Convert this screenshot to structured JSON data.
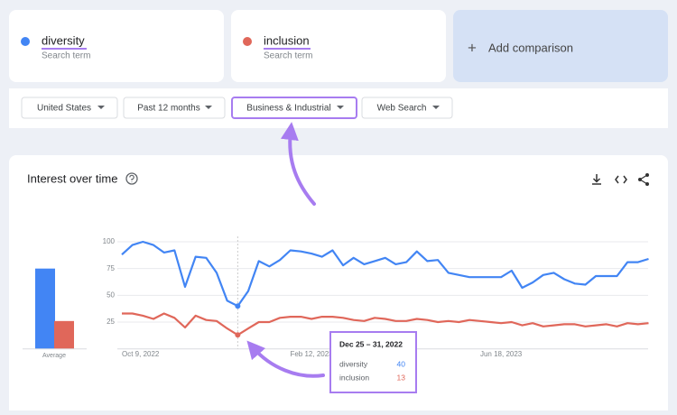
{
  "search_terms": [
    {
      "name": "diversity",
      "subtitle": "Search term"
    },
    {
      "name": "inclusion",
      "subtitle": "Search term"
    }
  ],
  "add_comparison": {
    "icon": "+",
    "label": "Add comparison"
  },
  "filters": [
    "United States",
    "Past 12 months",
    "Business & Industrial",
    "Web Search"
  ],
  "chart_data": {
    "type": "line",
    "title": "Interest over time",
    "categories": [
      "Oct 9, 2022",
      null,
      null,
      null,
      null,
      null,
      null,
      null,
      null,
      null,
      null,
      null,
      null,
      null,
      null,
      null,
      null,
      null,
      "Feb 12, 2023",
      null,
      null,
      null,
      null,
      null,
      null,
      null,
      null,
      null,
      null,
      null,
      null,
      null,
      null,
      null,
      null,
      null,
      "Jun 18, 2023",
      null,
      null,
      null,
      null,
      null,
      null,
      null,
      null,
      null,
      null,
      null,
      null,
      null,
      null
    ],
    "series": [
      {
        "name": "diversity",
        "color": "#4285f4",
        "values": [
          88,
          97,
          100,
          97,
          90,
          92,
          58,
          86,
          85,
          71,
          45,
          40,
          54,
          82,
          77,
          83,
          92,
          91,
          89,
          86,
          92,
          78,
          85,
          79,
          82,
          85,
          79,
          81,
          91,
          82,
          83,
          71,
          69,
          67,
          67,
          67,
          67,
          73,
          57,
          62,
          69,
          71,
          65,
          61,
          60,
          68,
          68,
          68,
          81,
          81,
          84
        ]
      },
      {
        "name": "inclusion",
        "color": "#e0675a",
        "values": [
          33,
          33,
          31,
          28,
          33,
          29,
          20,
          31,
          27,
          26,
          19,
          13,
          19,
          25,
          25,
          29,
          30,
          30,
          28,
          30,
          30,
          29,
          27,
          26,
          29,
          28,
          26,
          26,
          28,
          27,
          25,
          26,
          25,
          27,
          26,
          25,
          24,
          25,
          22,
          24,
          21,
          22,
          23,
          23,
          21,
          22,
          23,
          21,
          24,
          23,
          24
        ]
      }
    ],
    "ylim": [
      0,
      100
    ],
    "yticks": [
      25,
      50,
      75,
      100
    ],
    "grid": true,
    "averages": {
      "label": "Average",
      "values": [
        75,
        26
      ]
    },
    "tooltip": {
      "title": "Dec 25 – 31, 2022",
      "index": 11,
      "rows": [
        {
          "name": "diversity",
          "value": 40
        },
        {
          "name": "inclusion",
          "value": 13
        }
      ]
    }
  }
}
